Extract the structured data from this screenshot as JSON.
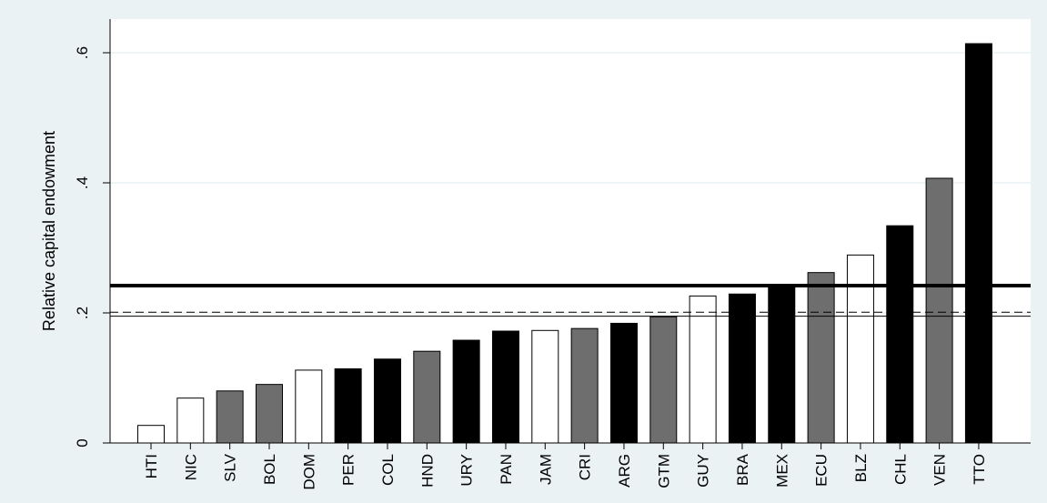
{
  "chart_data": {
    "type": "bar",
    "title": "",
    "xlabel": "",
    "ylabel": "Relative capital endowment",
    "ylim": [
      0,
      0.65
    ],
    "yticks": [
      0,
      0.2,
      0.4,
      0.6
    ],
    "ytick_labels": [
      "0",
      ".2",
      ".4",
      ".6"
    ],
    "grid": true,
    "categories": [
      "HTI",
      "NIC",
      "SLV",
      "BOL",
      "DOM",
      "PER",
      "COL",
      "HND",
      "URY",
      "PAN",
      "JAM",
      "CRI",
      "ARG",
      "GTM",
      "GUY",
      "BRA",
      "MEX",
      "ECU",
      "BLZ",
      "CHL",
      "VEN",
      "TTO"
    ],
    "values": [
      0.027,
      0.069,
      0.08,
      0.09,
      0.112,
      0.114,
      0.129,
      0.141,
      0.158,
      0.172,
      0.173,
      0.176,
      0.184,
      0.194,
      0.226,
      0.229,
      0.243,
      0.262,
      0.289,
      0.334,
      0.407,
      0.614
    ],
    "bar_fill": [
      "white",
      "white",
      "gray",
      "gray",
      "white",
      "black",
      "black",
      "gray",
      "black",
      "black",
      "white",
      "gray",
      "black",
      "gray",
      "white",
      "black",
      "black",
      "gray",
      "white",
      "black",
      "gray",
      "black"
    ],
    "reference_lines": [
      {
        "value": 0.242,
        "style": "thick-solid"
      },
      {
        "value": 0.201,
        "style": "dashed"
      },
      {
        "value": 0.195,
        "style": "thin-solid"
      }
    ],
    "colors": {
      "black": "#000000",
      "gray": "#6e6e6e",
      "white": "#ffffff",
      "background": "#eaf2f3",
      "plot_background": "#ffffff",
      "grid": "#eaf2f3"
    }
  }
}
